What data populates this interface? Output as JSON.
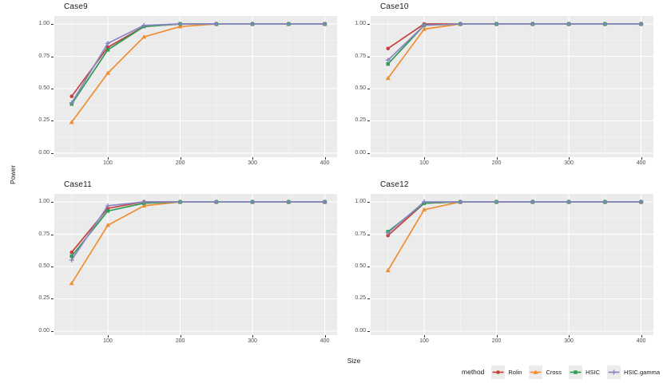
{
  "figure": {
    "ylabel": "Power",
    "xlabel": "Size",
    "colors": {
      "panel_background": "#EBEBEB",
      "grid": "#FFFFFF",
      "tick_label": "#4D4D4D",
      "text": "#1A1A1A"
    },
    "legend": {
      "title": "method",
      "position": "bottom-right",
      "items": [
        {
          "label": "Rolin",
          "color": "#C5413B",
          "marker": "circle"
        },
        {
          "label": "Cross",
          "color": "#EF8E31",
          "marker": "triangle"
        },
        {
          "label": "HSIC",
          "color": "#2E9B53",
          "marker": "square"
        },
        {
          "label": "HSIC.gamma",
          "color": "#8C86C6",
          "marker": "plus"
        }
      ]
    }
  },
  "chart_data": [
    {
      "type": "line",
      "title": "Case9",
      "xlabel": "Size",
      "ylabel": "Power",
      "x": [
        50,
        100,
        150,
        200,
        250,
        300,
        350,
        400
      ],
      "series": [
        {
          "name": "Rolin",
          "values": [
            0.44,
            0.82,
            0.98,
            1.0,
            1.0,
            1.0,
            1.0,
            1.0
          ]
        },
        {
          "name": "Cross",
          "values": [
            0.24,
            0.62,
            0.9,
            0.98,
            1.0,
            1.0,
            1.0,
            1.0
          ]
        },
        {
          "name": "HSIC",
          "values": [
            0.38,
            0.8,
            0.98,
            1.0,
            1.0,
            1.0,
            1.0,
            1.0
          ]
        },
        {
          "name": "HSIC.gamma",
          "values": [
            0.39,
            0.85,
            0.99,
            1.0,
            1.0,
            1.0,
            1.0,
            1.0
          ]
        }
      ],
      "xlim": [
        26,
        417
      ],
      "ylim": [
        -0.031,
        1.062
      ],
      "x_ticks": [
        100,
        200,
        300,
        400
      ],
      "y_ticks": [
        {
          "value": 0.0,
          "label": "0.00"
        },
        {
          "value": 0.25,
          "label": "0.25"
        },
        {
          "value": 0.5,
          "label": "0.50"
        },
        {
          "value": 0.75,
          "label": "0.75"
        },
        {
          "value": 1.0,
          "label": "1.00"
        }
      ],
      "grid": true
    },
    {
      "type": "line",
      "title": "Case10",
      "xlabel": "Size",
      "ylabel": "Power",
      "x": [
        50,
        100,
        150,
        200,
        250,
        300,
        350,
        400
      ],
      "series": [
        {
          "name": "Rolin",
          "values": [
            0.81,
            1.0,
            1.0,
            1.0,
            1.0,
            1.0,
            1.0,
            1.0
          ]
        },
        {
          "name": "Cross",
          "values": [
            0.58,
            0.96,
            1.0,
            1.0,
            1.0,
            1.0,
            1.0,
            1.0
          ]
        },
        {
          "name": "HSIC",
          "values": [
            0.69,
            0.99,
            1.0,
            1.0,
            1.0,
            1.0,
            1.0,
            1.0
          ]
        },
        {
          "name": "HSIC.gamma",
          "values": [
            0.72,
            0.99,
            1.0,
            1.0,
            1.0,
            1.0,
            1.0,
            1.0
          ]
        }
      ],
      "xlim": [
        26,
        417
      ],
      "ylim": [
        -0.031,
        1.062
      ],
      "x_ticks": [
        100,
        200,
        300,
        400
      ],
      "y_ticks": [
        {
          "value": 0.0,
          "label": "0.00"
        },
        {
          "value": 0.25,
          "label": "0.25"
        },
        {
          "value": 0.5,
          "label": "0.50"
        },
        {
          "value": 0.75,
          "label": "0.75"
        },
        {
          "value": 1.0,
          "label": "1.00"
        }
      ],
      "grid": true
    },
    {
      "type": "line",
      "title": "Case11",
      "xlabel": "Size",
      "ylabel": "Power",
      "x": [
        50,
        100,
        150,
        200,
        250,
        300,
        350,
        400
      ],
      "series": [
        {
          "name": "Rolin",
          "values": [
            0.61,
            0.95,
            1.0,
            1.0,
            1.0,
            1.0,
            1.0,
            1.0
          ]
        },
        {
          "name": "Cross",
          "values": [
            0.37,
            0.82,
            0.97,
            1.0,
            1.0,
            1.0,
            1.0,
            1.0
          ]
        },
        {
          "name": "HSIC",
          "values": [
            0.58,
            0.93,
            0.99,
            1.0,
            1.0,
            1.0,
            1.0,
            1.0
          ]
        },
        {
          "name": "HSIC.gamma",
          "values": [
            0.55,
            0.97,
            1.0,
            1.0,
            1.0,
            1.0,
            1.0,
            1.0
          ]
        }
      ],
      "xlim": [
        26,
        417
      ],
      "ylim": [
        -0.031,
        1.062
      ],
      "x_ticks": [
        100,
        200,
        300,
        400
      ],
      "y_ticks": [
        {
          "value": 0.0,
          "label": "0.00"
        },
        {
          "value": 0.25,
          "label": "0.25"
        },
        {
          "value": 0.5,
          "label": "0.50"
        },
        {
          "value": 0.75,
          "label": "0.75"
        },
        {
          "value": 1.0,
          "label": "1.00"
        }
      ],
      "grid": true
    },
    {
      "type": "line",
      "title": "Case12",
      "xlabel": "Size",
      "ylabel": "Power",
      "x": [
        50,
        100,
        150,
        200,
        250,
        300,
        350,
        400
      ],
      "series": [
        {
          "name": "Rolin",
          "values": [
            0.74,
            0.99,
            1.0,
            1.0,
            1.0,
            1.0,
            1.0,
            1.0
          ]
        },
        {
          "name": "Cross",
          "values": [
            0.47,
            0.94,
            1.0,
            1.0,
            1.0,
            1.0,
            1.0,
            1.0
          ]
        },
        {
          "name": "HSIC",
          "values": [
            0.77,
            0.99,
            1.0,
            1.0,
            1.0,
            1.0,
            1.0,
            1.0
          ]
        },
        {
          "name": "HSIC.gamma",
          "values": [
            0.76,
            1.0,
            1.0,
            1.0,
            1.0,
            1.0,
            1.0,
            1.0
          ]
        }
      ],
      "xlim": [
        26,
        417
      ],
      "ylim": [
        -0.031,
        1.062
      ],
      "x_ticks": [
        100,
        200,
        300,
        400
      ],
      "y_ticks": [
        {
          "value": 0.0,
          "label": "0.00"
        },
        {
          "value": 0.25,
          "label": "0.25"
        },
        {
          "value": 0.5,
          "label": "0.50"
        },
        {
          "value": 0.75,
          "label": "0.75"
        },
        {
          "value": 1.0,
          "label": "1.00"
        }
      ],
      "grid": true
    }
  ]
}
